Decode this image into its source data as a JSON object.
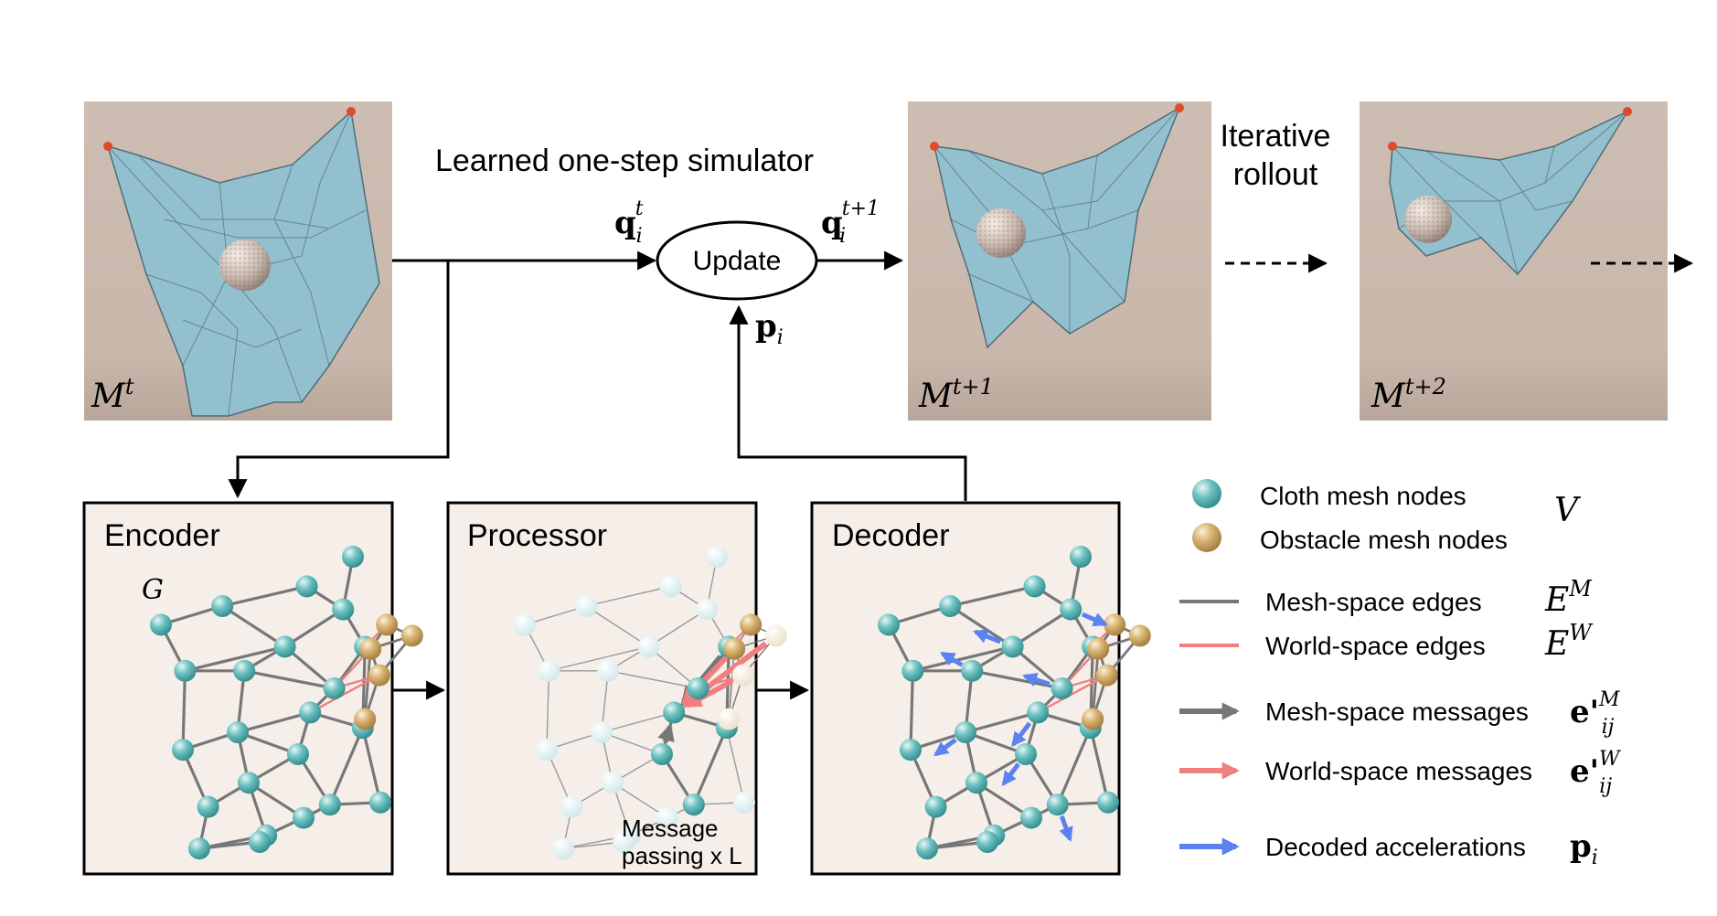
{
  "top": {
    "simulator_label": "Learned one-step simulator",
    "update_label": "Update",
    "q_in": {
      "base": "q",
      "sub": "i",
      "sup": "t"
    },
    "q_out": {
      "base": "q",
      "sub": "i",
      "sup": "t+1"
    },
    "p_in": {
      "base": "p",
      "sub": "i"
    },
    "iterative_line1": "Iterative",
    "iterative_line2": "rollout",
    "frames": [
      {
        "base": "M",
        "sup": "t"
      },
      {
        "base": "M",
        "sup": "t+1"
      },
      {
        "base": "M",
        "sup": "t+2"
      }
    ]
  },
  "blocks": {
    "encoder": {
      "title": "Encoder",
      "graph_label": "G"
    },
    "processor": {
      "title": "Processor",
      "note_line1": "Message",
      "note_line2": "passing x L"
    },
    "decoder": {
      "title": "Decoder"
    }
  },
  "legend": {
    "cloth_nodes": "Cloth mesh nodes",
    "obstacle_nodes": "Obstacle mesh nodes",
    "nodes_symbol": "V",
    "mesh_edges": "Mesh-space edges",
    "mesh_edges_symbol": {
      "base": "E",
      "sup": "M"
    },
    "world_edges": "World-space edges",
    "world_edges_symbol": {
      "base": "E",
      "sup": "W"
    },
    "mesh_messages": "Mesh-space messages",
    "mesh_messages_symbol": {
      "base": "e'",
      "sub": "ij",
      "sup": "M"
    },
    "world_messages": "World-space messages",
    "world_messages_symbol": {
      "base": "e'",
      "sub": "ij",
      "sup": "W"
    },
    "decoded": "Decoded accelerations",
    "decoded_symbol": {
      "base": "p",
      "sub": "i"
    }
  },
  "colors": {
    "cloth_node": "#5bb5b4",
    "obstacle_node": "#d6b06f",
    "mesh_edge": "#777777",
    "world_edge": "#f08080",
    "decoded_arrow": "#5b82f0",
    "block_bg": "#f6efe9",
    "photo_bg": "#cbbab0",
    "cloth": "#93c0cf"
  }
}
